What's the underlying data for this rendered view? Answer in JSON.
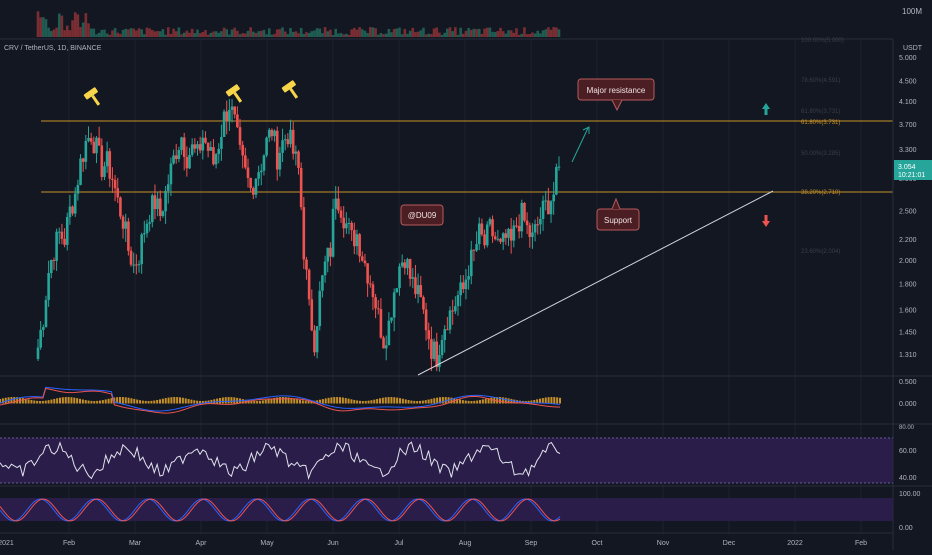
{
  "header": {
    "symbol_line": "CRV / TetherUS, 1D, BINANCE",
    "volume_scale_label": "100M",
    "price_unit": "USDT"
  },
  "price_axis": {
    "ticks": [
      "5.000",
      "4.500",
      "4.100",
      "3.700",
      "3.300",
      "2.900",
      "2.500",
      "2.200",
      "2.000",
      "1.800",
      "1.600",
      "1.450",
      "1.310"
    ],
    "last_price": "3.054",
    "countdown": "10:21:01",
    "last_price_color": "#26a69a"
  },
  "time_axis": {
    "labels": [
      "2021",
      "Feb",
      "Mar",
      "Apr",
      "May",
      "Jun",
      "Jul",
      "Aug",
      "Sep",
      "Oct",
      "Nov",
      "Dec",
      "2022",
      "Feb"
    ]
  },
  "annotations": {
    "major_resistance": "Major resistance",
    "support": "Support",
    "watermark": "@DU09",
    "fib_618": "61.80%(3.731)",
    "fib_382": "38.20%(2.710)",
    "fib_786": "78.60%(4.591)",
    "fib_500": "50.00%(3.285)",
    "fib_236": "23.60%(2.004)",
    "top_label": "100.00%(5.000)",
    "up_arrow_color": "#26a69a",
    "down_arrow_color": "#ef5350",
    "hammer_icon_color": "#f7d54a"
  },
  "indicators": {
    "macd": {
      "ticks": [
        "0.500",
        "0.000",
        "-0.500"
      ]
    },
    "rsi": {
      "ticks": [
        "60.00",
        "40.00"
      ],
      "top_label": "80.00"
    },
    "stoch": {
      "ticks": [
        "100.00",
        "0.00"
      ]
    }
  },
  "chart_data": {
    "type": "candlestick",
    "title": "CRV / TetherUS, 1D, BINANCE",
    "y_scale": "log",
    "ylim": [
      1.2,
      5.2
    ],
    "x_labels": [
      "2021",
      "Feb",
      "Mar",
      "Apr",
      "May",
      "Jun",
      "Jul",
      "Aug",
      "Sep",
      "Oct",
      "Nov",
      "Dec",
      "2022",
      "Feb"
    ],
    "fib_levels": [
      {
        "label": "61.80%(3.731)",
        "value": 3.731
      },
      {
        "label": "38.20%(2.710)",
        "value": 2.71
      }
    ],
    "close_series": [
      1.35,
      1.55,
      1.9,
      2.1,
      2.25,
      2.2,
      2.5,
      2.7,
      3.1,
      3.4,
      3.55,
      3.3,
      3.05,
      3.1,
      2.9,
      2.6,
      2.4,
      2.1,
      1.95,
      2.05,
      2.3,
      2.5,
      2.6,
      2.45,
      2.7,
      3.0,
      3.3,
      3.5,
      3.2,
      3.3,
      3.2,
      3.5,
      3.3,
      3.1,
      3.4,
      3.8,
      4.05,
      3.7,
      3.2,
      2.95,
      2.75,
      2.95,
      3.1,
      3.4,
      3.6,
      3.2,
      3.4,
      3.55,
      3.25,
      3.0,
      2.1,
      1.6,
      1.4,
      1.7,
      1.95,
      2.1,
      2.75,
      2.55,
      2.35,
      2.2,
      2.25,
      2.05,
      1.9,
      1.75,
      1.55,
      1.4,
      1.5,
      1.75,
      1.95,
      2.05,
      1.85,
      1.75,
      1.65,
      1.5,
      1.35,
      1.3,
      1.45,
      1.55,
      1.6,
      1.7,
      1.75,
      1.95,
      2.05,
      2.25,
      2.15,
      2.3,
      2.2,
      2.1,
      2.2,
      2.15,
      2.35,
      2.45,
      2.3,
      2.2,
      2.35,
      2.5,
      2.6,
      2.7,
      3.05
    ],
    "trendline": {
      "from": {
        "index": 75,
        "value": 1.3
      },
      "to": {
        "index": 129,
        "value": 2.75
      }
    },
    "macd_range": [
      -0.5,
      0.5
    ],
    "rsi_range": [
      20,
      90
    ],
    "stoch_range": [
      0,
      100
    ]
  }
}
